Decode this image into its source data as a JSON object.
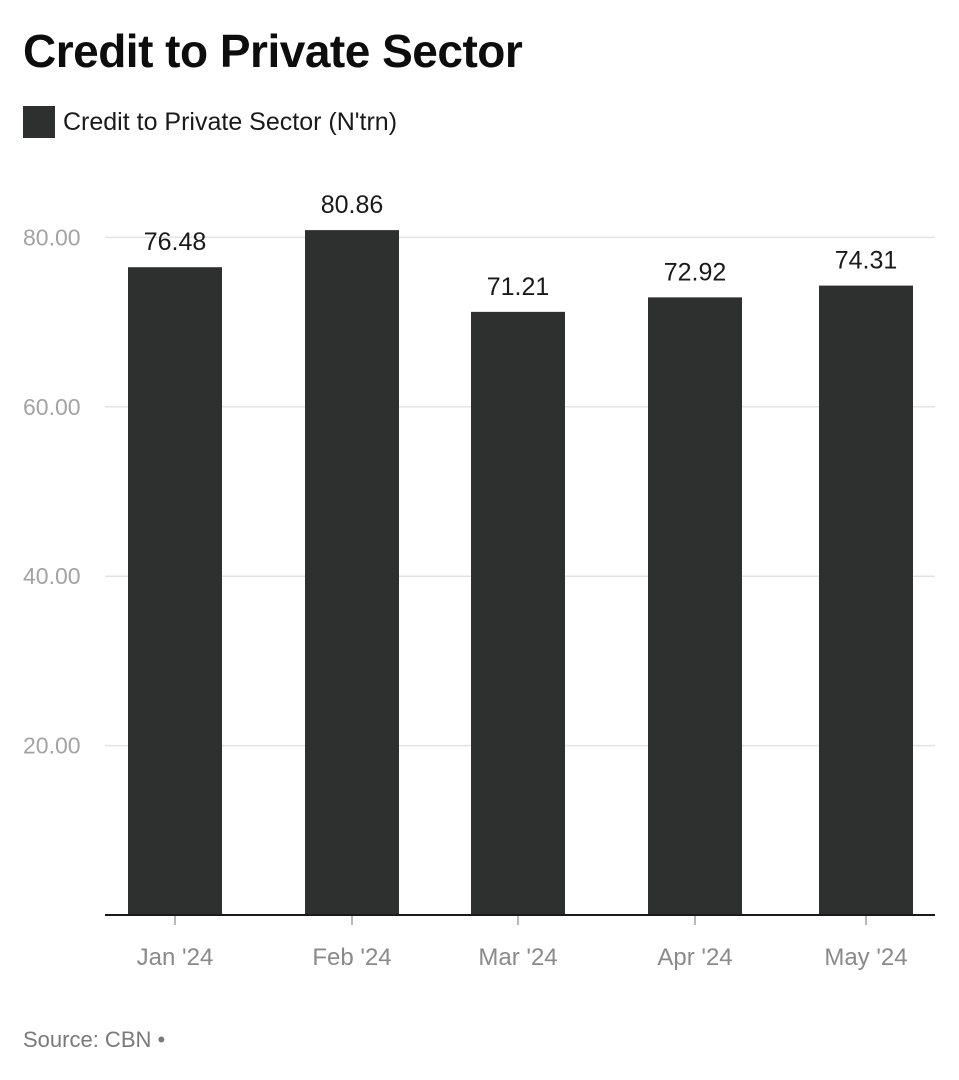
{
  "chart_data": {
    "type": "bar",
    "title": "Credit to Private Sector",
    "series": [
      {
        "name": "Credit to Private Sector (N'trn)",
        "color": "#2e2f2f",
        "values": [
          76.48,
          80.86,
          71.21,
          72.92,
          74.31
        ]
      }
    ],
    "categories": [
      "Jan '24",
      "Feb '24",
      "Mar '24",
      "Apr '24",
      "May '24"
    ],
    "data_labels": [
      "76.48",
      "80.86",
      "71.21",
      "72.92",
      "74.31"
    ],
    "yticks": [
      {
        "value": 20,
        "label": "20.00"
      },
      {
        "value": 40,
        "label": "40.00"
      },
      {
        "value": 60,
        "label": "60.00"
      },
      {
        "value": 80,
        "label": "80.00"
      }
    ],
    "ylim": [
      0,
      80
    ],
    "grid": true,
    "legend_position": "top-left",
    "xlabel": "",
    "ylabel": ""
  },
  "source": "Source: CBN •"
}
